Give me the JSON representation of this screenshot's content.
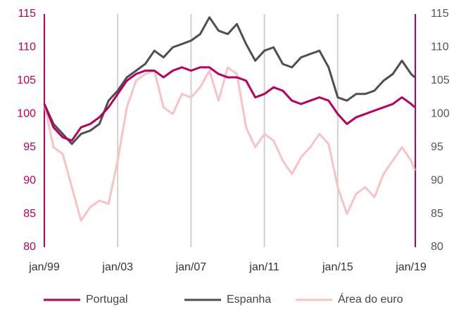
{
  "chart_data": {
    "type": "line",
    "x": [
      1999,
      1999.5,
      2000,
      2000.5,
      2001,
      2001.5,
      2002,
      2002.5,
      2003,
      2003.5,
      2004,
      2004.5,
      2005,
      2005.5,
      2006,
      2006.5,
      2007,
      2007.5,
      2008,
      2008.5,
      2009,
      2009.5,
      2010,
      2010.5,
      2011,
      2011.5,
      2012,
      2012.5,
      2013,
      2013.5,
      2014,
      2014.5,
      2015,
      2015.5,
      2016,
      2016.5,
      2017,
      2017.5,
      2018,
      2018.5,
      2019,
      2019.2
    ],
    "series": [
      {
        "name": "Área do euro",
        "color": "#f8c3c5",
        "values": [
          101.5,
          95,
          94,
          89,
          84,
          86,
          87,
          86.5,
          93,
          101,
          105,
          106,
          106.5,
          101,
          100,
          103,
          102.5,
          104,
          106.5,
          102,
          107,
          106,
          98,
          95,
          97,
          96,
          93,
          91,
          93.5,
          95,
          97,
          95.5,
          89,
          85,
          88,
          89,
          87.5,
          91,
          93,
          95,
          93,
          91.5
        ]
      },
      {
        "name": "Espanha",
        "color": "#4f4f4f",
        "values": [
          101.5,
          98.5,
          97,
          95.5,
          97,
          97.5,
          98.5,
          102,
          103.5,
          105.5,
          106.5,
          107.5,
          109.5,
          108.5,
          110,
          110.5,
          111,
          112,
          114.5,
          112.5,
          112,
          113.5,
          110.5,
          108,
          109.5,
          110,
          107.5,
          107,
          108.5,
          109,
          109.5,
          107,
          102.5,
          102,
          103,
          103,
          103.5,
          105,
          106,
          108,
          106,
          105.5
        ]
      },
      {
        "name": "Portugal",
        "color": "#b8005f",
        "values": [
          101.5,
          98,
          96.5,
          96,
          98,
          98.5,
          99.5,
          101,
          103,
          105,
          106,
          106.5,
          106.5,
          105.5,
          106.5,
          107,
          106.5,
          107,
          107,
          106,
          105.5,
          105.5,
          105,
          102.5,
          103,
          104,
          103.5,
          102,
          101.5,
          102,
          102.5,
          102,
          100,
          98.5,
          99.5,
          100,
          100.5,
          101,
          101.5,
          102.5,
          101.5,
          101
        ]
      }
    ],
    "xlim": [
      1999,
      2019.23
    ],
    "xticks": [
      {
        "value": 1999,
        "label": "jan/99"
      },
      {
        "value": 2003,
        "label": "jan/03"
      },
      {
        "value": 2007,
        "label": "jan/07"
      },
      {
        "value": 2011,
        "label": "jan/11"
      },
      {
        "value": 2015,
        "label": "jan/15"
      },
      {
        "value": 2019,
        "label": "jan/19"
      }
    ],
    "ylim": [
      80,
      115
    ],
    "yticks": [
      80,
      85,
      90,
      95,
      100,
      105,
      110,
      115
    ],
    "y2lim": [
      80,
      115
    ],
    "y2ticks": [
      80,
      85,
      90,
      95,
      100,
      105,
      110,
      115
    ],
    "grid": true
  }
}
